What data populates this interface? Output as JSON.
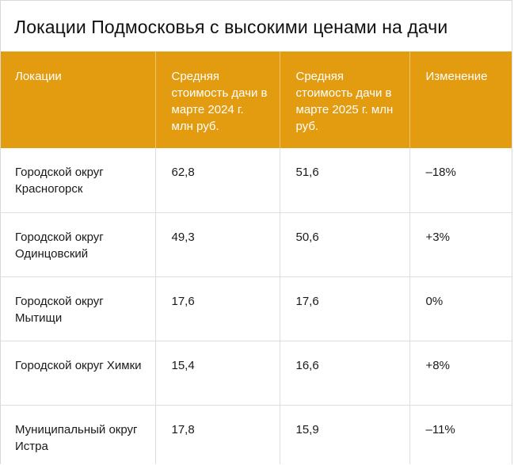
{
  "title": "Локации Подмосковья с высокими ценами на дачи",
  "colors": {
    "header_bg": "#e39b10",
    "header_text": "#ffffff"
  },
  "columns": [
    "Локации",
    "Средняя стоимость дачи в марте 2024 г. млн руб.",
    "Средняя стоимость дачи в марте 2025 г. млн руб.",
    "Изменение"
  ],
  "rows": [
    {
      "location": "Городской округ Красногорск",
      "price_2024": "62,8",
      "price_2025": "51,6",
      "change": "–18%"
    },
    {
      "location": "Городской округ Одинцовский",
      "price_2024": "49,3",
      "price_2025": "50,6",
      "change": "+3%"
    },
    {
      "location": "Городской округ Мытищи",
      "price_2024": "17,6",
      "price_2025": "17,6",
      "change": "0%"
    },
    {
      "location": "Городской округ Химки",
      "price_2024": "15,4",
      "price_2025": "16,6",
      "change": "+8%"
    },
    {
      "location": "Муниципальный округ Истра",
      "price_2024": "17,8",
      "price_2025": "15,9",
      "change": "–11%"
    }
  ]
}
